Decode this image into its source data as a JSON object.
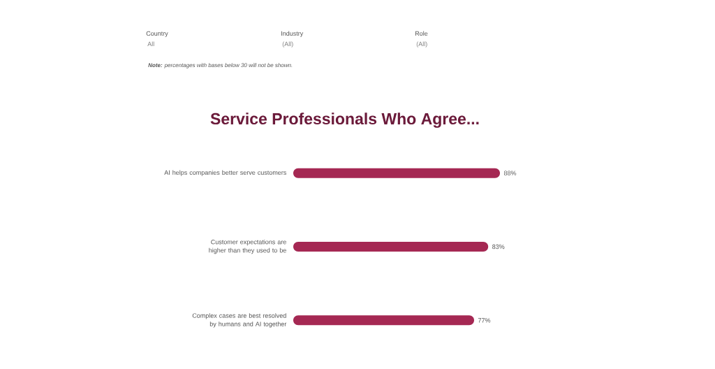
{
  "chart_data": {
    "type": "bar",
    "orientation": "horizontal",
    "title": "Service Professionals Who Agree...",
    "categories": [
      "AI helps companies better serve customers",
      "Customer expectations are higher than they used to be",
      "Complex cases are best resolved by humans and AI together"
    ],
    "values": [
      88,
      83,
      77
    ],
    "value_labels": [
      "88%",
      "83%",
      "77%"
    ],
    "color": "#a52853",
    "annotations": [
      "Country",
      "All",
      "Industry",
      "(All)",
      "Role",
      "(All)",
      "**Note:** percentages with bases below 30 will not be shown."
    ]
  }
}
